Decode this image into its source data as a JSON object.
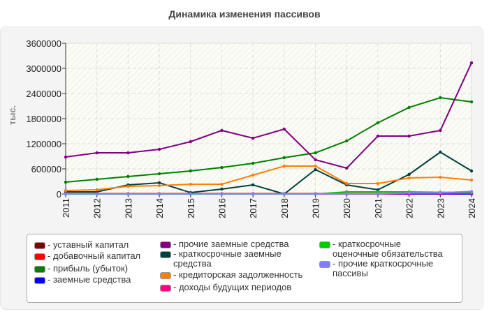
{
  "chart_data": {
    "type": "line",
    "title": "Динамика изменения пассивов",
    "ylabel": "тыс.",
    "xlabel": "",
    "ylim": [
      0,
      3600000
    ],
    "yticks": [
      "0",
      "600000",
      "1200000",
      "1800000",
      "2400000",
      "3000000",
      "3600000"
    ],
    "grid": true,
    "legend_position": "bottom",
    "x": [
      "2011",
      "2012",
      "2013",
      "2014",
      "2015",
      "2016",
      "2017",
      "2018",
      "2019",
      "2020",
      "2021",
      "2022",
      "2023",
      "2024"
    ],
    "series": [
      {
        "name": "уставный капитал",
        "color": "#800000",
        "values": [
          0,
          0,
          0,
          0,
          0,
          0,
          0,
          0,
          0,
          0,
          0,
          0,
          0,
          0
        ]
      },
      {
        "name": "добавочный капитал",
        "color": "#ff0000",
        "values": [
          10000,
          10000,
          10000,
          10000,
          10000,
          10000,
          10000,
          10000,
          10000,
          10000,
          10000,
          10000,
          10000,
          10000
        ]
      },
      {
        "name": "прибыль (убыток)",
        "color": "#008000",
        "values": [
          283000,
          350000,
          417000,
          483000,
          550000,
          633000,
          733000,
          867000,
          983000,
          1267000,
          1700000,
          2067000,
          2300000,
          2200000
        ]
      },
      {
        "name": "заемные средства",
        "color": "#0000ff",
        "values": [
          0,
          0,
          0,
          0,
          0,
          0,
          0,
          0,
          0,
          0,
          0,
          0,
          0,
          0
        ]
      },
      {
        "name": "прочие заемные средства",
        "color": "#800080",
        "values": [
          883000,
          983000,
          983000,
          1067000,
          1250000,
          1517000,
          1333000,
          1550000,
          817000,
          617000,
          1383000,
          1383000,
          1517000,
          3133000
        ]
      },
      {
        "name": "краткосрочные заемные средства",
        "color": "#004040",
        "values": [
          50000,
          50000,
          217000,
          267000,
          33000,
          117000,
          217000,
          0,
          583000,
          217000,
          100000,
          467000,
          1000000,
          550000
        ]
      },
      {
        "name": "кредиторская задолженность",
        "color": "#ff8000",
        "values": [
          83000,
          100000,
          183000,
          200000,
          233000,
          233000,
          450000,
          667000,
          667000,
          250000,
          250000,
          383000,
          400000,
          333000
        ]
      },
      {
        "name": "доходы будущих периодов",
        "color": "#ff0080",
        "values": [
          0,
          0,
          0,
          0,
          0,
          0,
          0,
          0,
          0,
          0,
          0,
          10000,
          10000,
          15000
        ]
      },
      {
        "name": "краткосрочные оценочные обязательства",
        "color": "#00cc00",
        "values": [
          0,
          0,
          0,
          0,
          0,
          0,
          0,
          0,
          0,
          50000,
          50000,
          50000,
          40000,
          40000
        ]
      },
      {
        "name": "прочие краткосрочные пассивы",
        "color": "#8080ff",
        "values": [
          5000,
          5000,
          5000,
          5000,
          5000,
          5000,
          5000,
          5000,
          5000,
          5000,
          5000,
          30000,
          30000,
          60000
        ]
      }
    ]
  }
}
